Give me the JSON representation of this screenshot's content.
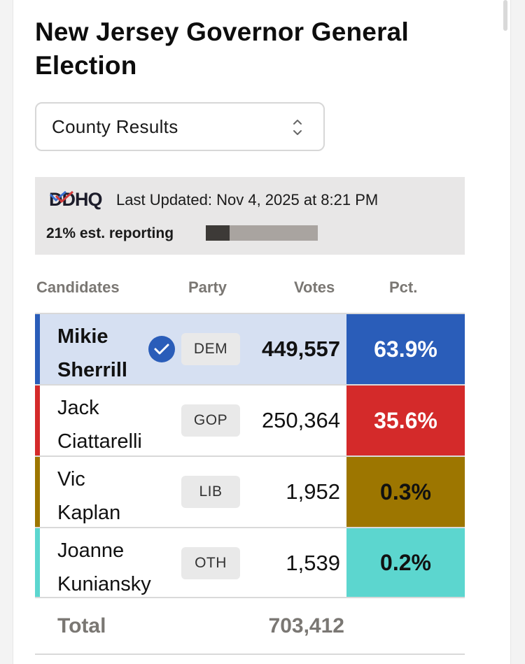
{
  "title": "New Jersey Governor General Election",
  "dropdown": {
    "selected": "County Results"
  },
  "info": {
    "logo": "DDHQ",
    "last_updated": "Last Updated: Nov 4, 2025 at 8:21 PM",
    "reporting_label": "21% est. reporting",
    "reporting_fraction": 0.21
  },
  "headers": {
    "candidates": "Candidates",
    "party": "Party",
    "votes": "Votes",
    "pct": "Pct."
  },
  "candidates": [
    {
      "first": "Mikie",
      "last": "Sherrill",
      "party": "DEM",
      "votes": "449,557",
      "pct": "63.9%",
      "color": "#2a5db9",
      "row_bg": "#d6e0f2",
      "pct_text": "#ffffff",
      "winner": true
    },
    {
      "first": "Jack",
      "last": "Ciattarelli",
      "party": "GOP",
      "votes": "250,364",
      "pct": "35.6%",
      "color": "#d42a2a",
      "row_bg": "#ffffff",
      "pct_text": "#ffffff",
      "winner": false
    },
    {
      "first": "Vic",
      "last": "Kaplan",
      "party": "LIB",
      "votes": "1,952",
      "pct": "0.3%",
      "color": "#9d7600",
      "row_bg": "#ffffff",
      "pct_text": "#111111",
      "winner": false
    },
    {
      "first": "Joanne",
      "last": "Kuniansky",
      "party": "OTH",
      "votes": "1,539",
      "pct": "0.2%",
      "color": "#5cd6cf",
      "row_bg": "#ffffff",
      "pct_text": "#111111",
      "winner": false
    }
  ],
  "total": {
    "label": "Total",
    "value": "703,412"
  },
  "icons": {
    "winner": "checkmark-circle-icon",
    "dropdown": "chevron-up-down-icon"
  }
}
